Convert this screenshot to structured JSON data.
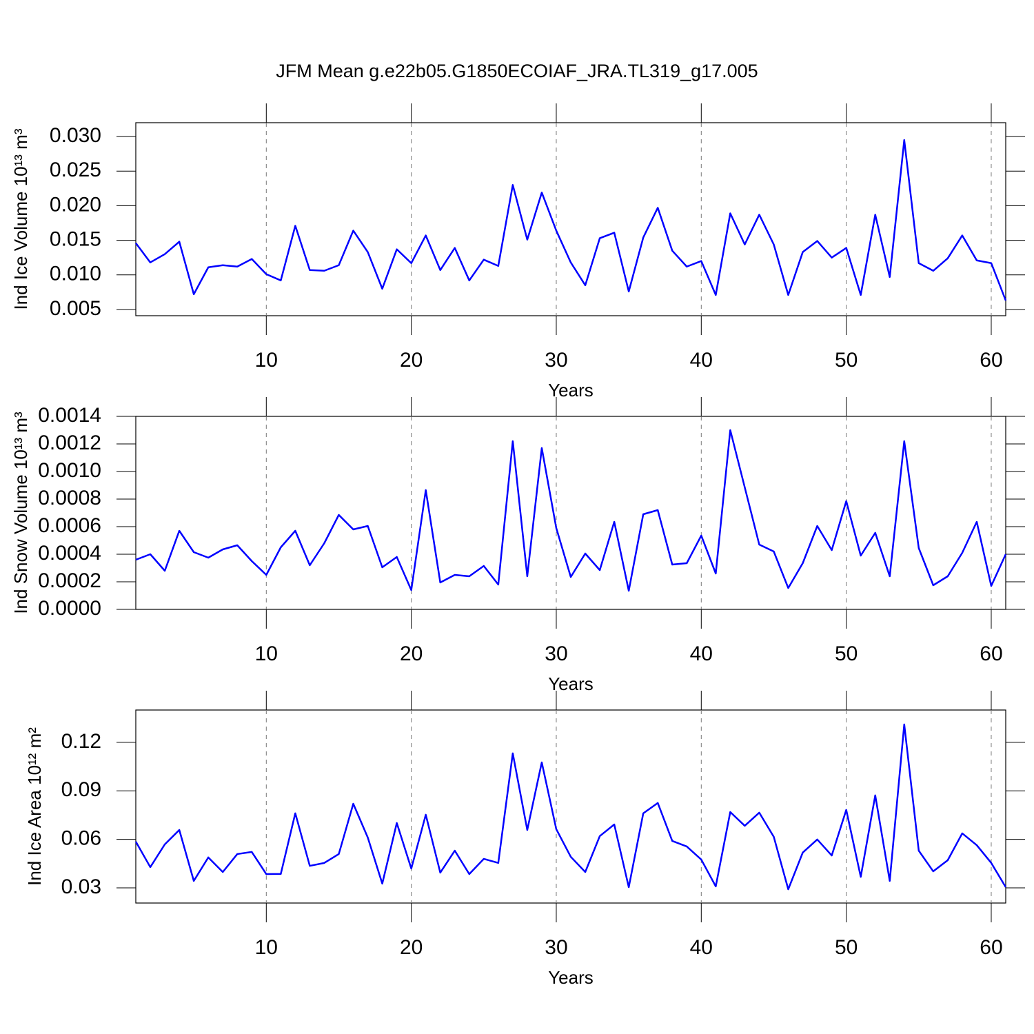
{
  "title": "JFM Mean g.e22b05.G1850ECOIAF_JRA.TL319_g17.005",
  "chart_data": [
    {
      "type": "line",
      "ylabel": "Ind Ice Volume 10¹³ m³",
      "xlabel": "Years",
      "color": "#0000ff",
      "grid": true,
      "xlim": [
        1,
        61
      ],
      "xticks": [
        10,
        20,
        30,
        40,
        50,
        60
      ],
      "ylim": [
        0.0041,
        0.032
      ],
      "yticks": [
        0.005,
        {
          "value": 0.01,
          "label": "0.010"
        },
        0.015,
        {
          "value": 0.02,
          "label": "0.020"
        },
        0.025,
        {
          "value": 0.03,
          "label": "0.030"
        }
      ],
      "x": [
        1,
        2,
        3,
        4,
        5,
        6,
        7,
        8,
        9,
        10,
        11,
        12,
        13,
        14,
        15,
        16,
        17,
        18,
        19,
        20,
        21,
        22,
        23,
        24,
        25,
        26,
        27,
        28,
        29,
        30,
        31,
        32,
        33,
        34,
        35,
        36,
        37,
        38,
        39,
        40,
        41,
        42,
        43,
        44,
        45,
        46,
        47,
        48,
        49,
        50,
        51,
        52,
        53,
        54,
        55,
        56,
        57,
        58,
        59,
        60,
        61
      ],
      "values": [
        0.0146,
        0.0118,
        0.013,
        0.0148,
        0.0072,
        0.0111,
        0.0114,
        0.0112,
        0.0123,
        0.0101,
        0.0092,
        0.0171,
        0.0107,
        0.0106,
        0.0114,
        0.0164,
        0.0133,
        0.008,
        0.0137,
        0.0117,
        0.0157,
        0.0107,
        0.0139,
        0.0092,
        0.0122,
        0.0113,
        0.023,
        0.0151,
        0.0219,
        0.0164,
        0.0118,
        0.0085,
        0.0153,
        0.0161,
        0.0076,
        0.0154,
        0.0197,
        0.0135,
        0.0112,
        0.012,
        0.0071,
        0.0189,
        0.0144,
        0.0187,
        0.0144,
        0.0071,
        0.0133,
        0.0149,
        0.0125,
        0.0139,
        0.0071,
        0.0187,
        0.0097,
        0.0295,
        0.0117,
        0.0106,
        0.0124,
        0.0157,
        0.0121,
        0.0117,
        0.0063
      ]
    },
    {
      "type": "line",
      "ylabel": "Ind Snow Volume 10¹³ m³",
      "xlabel": "Years",
      "color": "#0000ff",
      "grid": true,
      "xlim": [
        1,
        61
      ],
      "xticks": [
        10,
        20,
        30,
        40,
        50,
        60
      ],
      "ylim": [
        0,
        0.0014
      ],
      "yticks": [
        {
          "value": 0,
          "label": "0.0000"
        },
        0.0002,
        0.0004,
        0.0006,
        0.0008,
        {
          "value": 0.001,
          "label": "0.0010"
        },
        0.0012,
        0.0014
      ],
      "x": [
        1,
        2,
        3,
        4,
        5,
        6,
        7,
        8,
        9,
        10,
        11,
        12,
        13,
        14,
        15,
        16,
        17,
        18,
        19,
        20,
        21,
        22,
        23,
        24,
        25,
        26,
        27,
        28,
        29,
        30,
        31,
        32,
        33,
        34,
        35,
        36,
        37,
        38,
        39,
        40,
        41,
        42,
        43,
        44,
        45,
        46,
        47,
        48,
        49,
        50,
        51,
        52,
        53,
        54,
        55,
        56,
        57,
        58,
        59,
        60,
        61
      ],
      "values": [
        0.00036,
        0.0004,
        0.00028,
        0.00057,
        0.000415,
        0.000375,
        0.000435,
        0.000465,
        0.00035,
        0.00025,
        0.00045,
        0.00057,
        0.00032,
        0.00048,
        0.000685,
        0.00058,
        0.000605,
        0.000305,
        0.00038,
        0.00014,
        0.000865,
        0.000195,
        0.00025,
        0.00024,
        0.000315,
        0.00018,
        0.00122,
        0.00024,
        0.00117,
        0.00059,
        0.000235,
        0.000405,
        0.000285,
        0.000635,
        0.000135,
        0.00069,
        0.00072,
        0.000325,
        0.000335,
        0.000535,
        0.00026,
        0.0013,
        0.000885,
        0.00047,
        0.00042,
        0.000155,
        0.000335,
        0.000605,
        0.00043,
        0.000785,
        0.00039,
        0.000555,
        0.00024,
        0.00122,
        0.000445,
        0.000175,
        0.00024,
        0.00041,
        0.000635,
        0.00017,
        0.0004
      ]
    },
    {
      "type": "line",
      "ylabel": "Ind Ice Area 10¹² m²",
      "xlabel": "Years",
      "color": "#0000ff",
      "grid": true,
      "xlim": [
        1,
        61
      ],
      "xticks": [
        10,
        20,
        30,
        40,
        50,
        60
      ],
      "ylim": [
        0.0206,
        0.14
      ],
      "yticks": [
        0.03,
        0.06,
        0.09,
        0.12
      ],
      "x": [
        1,
        2,
        3,
        4,
        5,
        6,
        7,
        8,
        9,
        10,
        11,
        12,
        13,
        14,
        15,
        16,
        17,
        18,
        19,
        20,
        21,
        22,
        23,
        24,
        25,
        26,
        27,
        28,
        29,
        30,
        31,
        32,
        33,
        34,
        35,
        36,
        37,
        38,
        39,
        40,
        41,
        42,
        43,
        44,
        45,
        46,
        47,
        48,
        49,
        50,
        51,
        52,
        53,
        54,
        55,
        56,
        57,
        58,
        59,
        60,
        61
      ],
      "values": [
        0.0586,
        0.0428,
        0.0569,
        0.0658,
        0.0343,
        0.0488,
        0.0398,
        0.0509,
        0.0522,
        0.0385,
        0.0386,
        0.0761,
        0.0436,
        0.0454,
        0.0509,
        0.082,
        0.0611,
        0.0326,
        0.0701,
        0.0419,
        0.0752,
        0.0394,
        0.053,
        0.0385,
        0.0479,
        0.0454,
        0.1132,
        0.0658,
        0.1076,
        0.0663,
        0.0492,
        0.0398,
        0.062,
        0.0692,
        0.0304,
        0.0761,
        0.0825,
        0.059,
        0.0556,
        0.0475,
        0.0309,
        0.0769,
        0.0684,
        0.0765,
        0.0616,
        0.0291,
        0.0518,
        0.0599,
        0.05,
        0.0782,
        0.0368,
        0.0872,
        0.0343,
        0.1311,
        0.053,
        0.0402,
        0.0471,
        0.0637,
        0.0564,
        0.0454,
        0.0304
      ]
    }
  ]
}
